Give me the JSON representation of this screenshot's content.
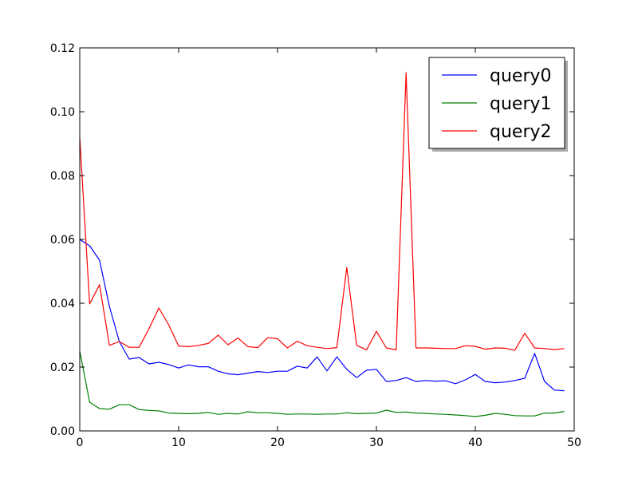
{
  "chart_data": {
    "type": "line",
    "title": "",
    "xlabel": "",
    "ylabel": "",
    "xlim": [
      0,
      50
    ],
    "ylim": [
      0,
      0.12
    ],
    "grid": false,
    "legend_position": "top-right",
    "xticks": [
      "0",
      "10",
      "20",
      "30",
      "40",
      "50"
    ],
    "yticks": [
      "0.00",
      "0.02",
      "0.04",
      "0.06",
      "0.08",
      "0.10",
      "0.12"
    ],
    "x": [
      0,
      1,
      2,
      3,
      4,
      5,
      6,
      7,
      8,
      9,
      10,
      11,
      12,
      13,
      14,
      15,
      16,
      17,
      18,
      19,
      20,
      21,
      22,
      23,
      24,
      25,
      26,
      27,
      28,
      29,
      30,
      31,
      32,
      33,
      34,
      35,
      36,
      37,
      38,
      39,
      40,
      41,
      42,
      43,
      44,
      45,
      46,
      47,
      48,
      49
    ],
    "series": [
      {
        "name": "query0",
        "color": "#0000ff",
        "values": [
          0.06,
          0.058,
          0.0535,
          0.039,
          0.028,
          0.0225,
          0.023,
          0.021,
          0.0215,
          0.0208,
          0.0197,
          0.0207,
          0.0201,
          0.0201,
          0.0187,
          0.0179,
          0.0176,
          0.0181,
          0.0186,
          0.0183,
          0.0187,
          0.0187,
          0.0203,
          0.0197,
          0.0232,
          0.0188,
          0.0232,
          0.0193,
          0.0167,
          0.019,
          0.0193,
          0.0155,
          0.0158,
          0.0167,
          0.0155,
          0.0158,
          0.0156,
          0.0157,
          0.0148,
          0.016,
          0.0177,
          0.0155,
          0.0151,
          0.0153,
          0.0158,
          0.0165,
          0.0243,
          0.0155,
          0.0128,
          0.0126
        ]
      },
      {
        "name": "query1",
        "color": "#008000",
        "values": [
          0.025,
          0.009,
          0.007,
          0.0068,
          0.0082,
          0.0082,
          0.0067,
          0.0064,
          0.0063,
          0.0056,
          0.0055,
          0.0054,
          0.0055,
          0.0058,
          0.0052,
          0.0055,
          0.0053,
          0.006,
          0.0057,
          0.0057,
          0.0055,
          0.0052,
          0.0053,
          0.0053,
          0.0052,
          0.0053,
          0.0053,
          0.0057,
          0.0054,
          0.0055,
          0.0056,
          0.0065,
          0.0058,
          0.0059,
          0.0056,
          0.0055,
          0.0053,
          0.0052,
          0.005,
          0.0048,
          0.0045,
          0.0049,
          0.0055,
          0.0052,
          0.0048,
          0.0047,
          0.0047,
          0.0056,
          0.0056,
          0.0061
        ]
      },
      {
        "name": "query2",
        "color": "#ff0000",
        "values": [
          0.092,
          0.0398,
          0.0458,
          0.0268,
          0.028,
          0.0262,
          0.0262,
          0.032,
          0.0385,
          0.0332,
          0.0266,
          0.0264,
          0.0268,
          0.0274,
          0.03,
          0.027,
          0.0291,
          0.0264,
          0.0261,
          0.0292,
          0.0289,
          0.026,
          0.0281,
          0.0267,
          0.0262,
          0.0258,
          0.0261,
          0.0512,
          0.0268,
          0.0254,
          0.0312,
          0.026,
          0.0254,
          0.1122,
          0.026,
          0.026,
          0.0259,
          0.0258,
          0.0258,
          0.0267,
          0.0265,
          0.0256,
          0.026,
          0.0259,
          0.0253,
          0.0306,
          0.026,
          0.0258,
          0.0255,
          0.0258
        ]
      }
    ]
  }
}
